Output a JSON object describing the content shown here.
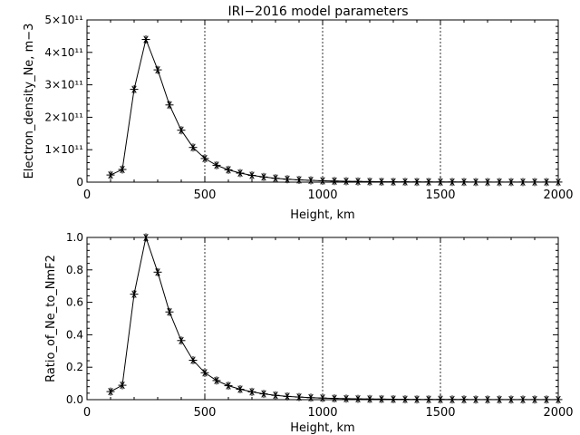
{
  "page": {
    "title": "IRI−2016 model parameters"
  },
  "chart_data": [
    {
      "type": "line",
      "marker": "asterisk",
      "title": "IRI−2016 model parameters",
      "xlabel": "Height, km",
      "ylabel": "Electron_density_Ne, m−3",
      "xlim": [
        0,
        2000
      ],
      "ylim": [
        0,
        500000000000.0
      ],
      "xticks": [
        0,
        500,
        1000,
        1500,
        2000
      ],
      "xtick_labels": [
        "0",
        "500",
        "1000",
        "1500",
        "2000"
      ],
      "yticks": [
        0,
        100000000000.0,
        200000000000.0,
        300000000000.0,
        400000000000.0,
        500000000000.0
      ],
      "ytick_labels": [
        "0",
        "1×10¹¹",
        "2×10¹¹",
        "3×10¹¹",
        "4×10¹¹",
        "5×10¹¹"
      ],
      "vlines": [
        500,
        1000,
        1500
      ],
      "x": [
        100,
        150,
        200,
        250,
        300,
        350,
        400,
        450,
        500,
        550,
        600,
        650,
        700,
        750,
        800,
        850,
        900,
        950,
        1000,
        1050,
        1100,
        1150,
        1200,
        1250,
        1300,
        1350,
        1400,
        1450,
        1500,
        1550,
        1600,
        1650,
        1700,
        1750,
        1800,
        1850,
        1900,
        1950,
        2000
      ],
      "y": [
        22000000000.0,
        39000000000.0,
        286000000000.0,
        440000000000.0,
        346000000000.0,
        238000000000.0,
        160000000000.0,
        107000000000.0,
        73000000000.0,
        52000000000.0,
        38000000000.0,
        28000000000.0,
        21000000000.0,
        16000000000.0,
        12000000000.0,
        9000000000.0,
        7000000000.0,
        5500000000.0,
        4300000000.0,
        3400000000.0,
        2700000000.0,
        2200000000.0,
        1800000000.0,
        1500000000.0,
        1200000000.0,
        1000000000.0,
        850000000.0,
        700000000.0,
        600000000.0,
        500000000.0,
        420000000.0,
        360000000.0,
        310000000.0,
        270000000.0,
        230000000.0,
        200000000.0,
        180000000.0,
        160000000.0,
        140000000.0
      ]
    },
    {
      "type": "line",
      "marker": "asterisk",
      "title": "",
      "xlabel": "Height, km",
      "ylabel": "Ratio_of_Ne_to_NmF2",
      "xlim": [
        0,
        2000
      ],
      "ylim": [
        0,
        1.0
      ],
      "xticks": [
        0,
        500,
        1000,
        1500,
        2000
      ],
      "xtick_labels": [
        "0",
        "500",
        "1000",
        "1500",
        "2000"
      ],
      "yticks": [
        0,
        0.2,
        0.4,
        0.6,
        0.8,
        1.0
      ],
      "ytick_labels": [
        "0.0",
        "0.2",
        "0.4",
        "0.6",
        "0.8",
        "1.0"
      ],
      "vlines": [
        500,
        1000,
        1500
      ],
      "x": [
        100,
        150,
        200,
        250,
        300,
        350,
        400,
        450,
        500,
        550,
        600,
        650,
        700,
        750,
        800,
        850,
        900,
        950,
        1000,
        1050,
        1100,
        1150,
        1200,
        1250,
        1300,
        1350,
        1400,
        1450,
        1500,
        1550,
        1600,
        1650,
        1700,
        1750,
        1800,
        1850,
        1900,
        1950,
        2000
      ],
      "y": [
        0.05,
        0.089,
        0.65,
        1.0,
        0.786,
        0.541,
        0.364,
        0.243,
        0.166,
        0.118,
        0.086,
        0.064,
        0.048,
        0.036,
        0.027,
        0.02,
        0.016,
        0.0125,
        0.0098,
        0.0077,
        0.0061,
        0.005,
        0.0041,
        0.0034,
        0.0027,
        0.0023,
        0.0019,
        0.0016,
        0.0014,
        0.0011,
        0.001,
        0.0008,
        0.0007,
        0.0006,
        0.0005,
        0.0005,
        0.0004,
        0.0004,
        0.0003
      ]
    }
  ]
}
